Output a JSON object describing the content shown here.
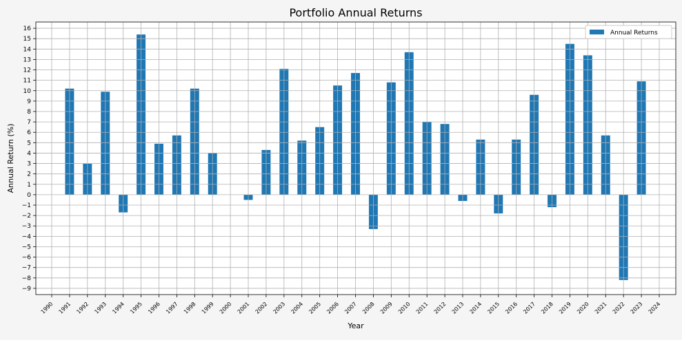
{
  "chart_data": {
    "type": "bar",
    "title": "Portfolio Annual Returns",
    "xlabel": "Year",
    "ylabel": "Annual Return (%)",
    "legend": {
      "label": "Annual Returns",
      "position": "top-right"
    },
    "colors": {
      "bar": "#1f77b4",
      "grid": "#b0b0b0",
      "page": "#f5f5f5",
      "plot": "#ffffff"
    },
    "grid": true,
    "ylim": [
      -9.6,
      16.6
    ],
    "yticks": [
      -9,
      -8,
      -7,
      -6,
      -5,
      -4,
      -3,
      -2,
      -1,
      0,
      1,
      2,
      3,
      4,
      5,
      6,
      7,
      8,
      9,
      10,
      11,
      12,
      13,
      14,
      15,
      16
    ],
    "categories": [
      "1990",
      "1991",
      "1992",
      "1993",
      "1994",
      "1995",
      "1996",
      "1997",
      "1998",
      "1999",
      "2000",
      "2001",
      "2002",
      "2003",
      "2004",
      "2005",
      "2006",
      "2007",
      "2008",
      "2009",
      "2010",
      "2011",
      "2012",
      "2013",
      "2014",
      "2015",
      "2016",
      "2017",
      "2018",
      "2019",
      "2020",
      "2021",
      "2022",
      "2023",
      "2024"
    ],
    "values": [
      null,
      10.2,
      3.0,
      9.9,
      -1.7,
      15.4,
      4.9,
      5.7,
      10.2,
      4.0,
      null,
      -0.5,
      4.3,
      12.1,
      5.2,
      6.5,
      10.5,
      11.7,
      -3.3,
      10.8,
      13.7,
      7.0,
      6.8,
      -0.6,
      5.3,
      -1.8,
      5.3,
      9.6,
      -1.2,
      14.5,
      13.4,
      5.7,
      -8.2,
      10.9,
      null
    ]
  }
}
